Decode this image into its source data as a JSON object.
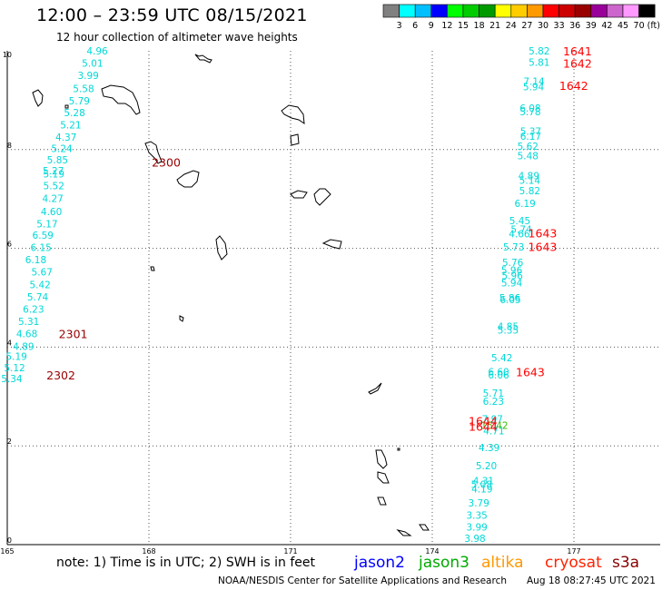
{
  "title": "12:00 – 23:59 UTC 08/15/2021",
  "subtitle": "12 hour collection of altimeter wave heights",
  "colorbar": {
    "ticks": [
      "3",
      "6",
      "9",
      "12",
      "15",
      "18",
      "21",
      "24",
      "27",
      "30",
      "33",
      "36",
      "39",
      "42",
      "45",
      "70"
    ],
    "unit": "(ft)",
    "colors": [
      "#808080",
      "#00ffff",
      "#00bfff",
      "#0000ff",
      "#00ff00",
      "#00cc00",
      "#009900",
      "#ffff00",
      "#ffcc00",
      "#ff9900",
      "#ff0000",
      "#cc0000",
      "#990000",
      "#990099",
      "#cc66cc",
      "#ff99ff",
      "#000000"
    ]
  },
  "axes": {
    "x_ticks": [
      "165",
      "168",
      "171",
      "174",
      "177"
    ],
    "y_ticks": [
      "10",
      "8",
      "6",
      "4",
      "2",
      "0"
    ]
  },
  "legend": {
    "note": "note: 1) Time is in UTC; 2) SWH is in feet",
    "satellites": [
      {
        "name": "jason2",
        "color": "#0000ff"
      },
      {
        "name": "jason3",
        "color": "#00aa00"
      },
      {
        "name": "altika",
        "color": "#ff9900"
      },
      {
        "name": "cryosat",
        "color": "#ff2200"
      },
      {
        "name": "s3a",
        "color": "#880000"
      }
    ]
  },
  "footer": {
    "credit": "NOAA/NESDIS Center for Satellite Applications and Research",
    "timestamp": "Aug 18 08:27:45 UTC 2021"
  },
  "colors": {
    "cyan": "#00d8d8",
    "red": "#ff0000",
    "darkred": "#990000",
    "green": "#33bb00"
  },
  "track_times": [
    {
      "label": "2300",
      "color": "darkred",
      "lon": 168.06,
      "lat": 7.75
    },
    {
      "label": "2301",
      "color": "darkred",
      "lon": 166.09,
      "lat": 4.27
    },
    {
      "label": "2302",
      "color": "darkred",
      "lon": 165.83,
      "lat": 3.44
    },
    {
      "label": "1641",
      "color": "red",
      "lon": 176.77,
      "lat": 10.0
    },
    {
      "label": "1642",
      "color": "red",
      "lon": 176.77,
      "lat": 9.75
    },
    {
      "label": "1642",
      "color": "red",
      "lon": 176.69,
      "lat": 9.3
    },
    {
      "label": "1643",
      "color": "red",
      "lon": 176.03,
      "lat": 6.31
    },
    {
      "label": "1643",
      "color": "red",
      "lon": 176.03,
      "lat": 6.04
    },
    {
      "label": "1643",
      "color": "red",
      "lon": 175.77,
      "lat": 3.5
    },
    {
      "label": "1644",
      "color": "red",
      "lon": 174.77,
      "lat": 2.51
    },
    {
      "label": "1644",
      "color": "red",
      "lon": 174.77,
      "lat": 2.4
    }
  ],
  "wave_heights": [
    {
      "v": "4.96",
      "c": "cyan",
      "lon": 166.68,
      "lat": 10.0
    },
    {
      "v": "5.01",
      "c": "cyan",
      "lon": 166.58,
      "lat": 9.75
    },
    {
      "v": "3.99",
      "c": "cyan",
      "lon": 166.49,
      "lat": 9.5
    },
    {
      "v": "5.58",
      "c": "cyan",
      "lon": 166.39,
      "lat": 9.24
    },
    {
      "v": "5.79",
      "c": "cyan",
      "lon": 166.3,
      "lat": 8.99
    },
    {
      "v": "5.28",
      "c": "cyan",
      "lon": 166.2,
      "lat": 8.75
    },
    {
      "v": "5.21",
      "c": "cyan",
      "lon": 166.12,
      "lat": 8.5
    },
    {
      "v": "4.37",
      "c": "cyan",
      "lon": 166.02,
      "lat": 8.25
    },
    {
      "v": "5.24",
      "c": "cyan",
      "lon": 165.93,
      "lat": 8.02
    },
    {
      "v": "5.85",
      "c": "cyan",
      "lon": 165.84,
      "lat": 7.79
    },
    {
      "v": "5.27",
      "c": "cyan",
      "lon": 165.75,
      "lat": 7.57
    },
    {
      "v": "5.19",
      "c": "cyan",
      "lon": 165.76,
      "lat": 7.51
    },
    {
      "v": "5.52",
      "c": "cyan",
      "lon": 165.76,
      "lat": 7.27
    },
    {
      "v": "4.27",
      "c": "cyan",
      "lon": 165.74,
      "lat": 7.01
    },
    {
      "v": "4.60",
      "c": "cyan",
      "lon": 165.71,
      "lat": 6.75
    },
    {
      "v": "5.17",
      "c": "cyan",
      "lon": 165.62,
      "lat": 6.5
    },
    {
      "v": "6.59",
      "c": "cyan",
      "lon": 165.53,
      "lat": 6.27
    },
    {
      "v": "6.15",
      "c": "cyan",
      "lon": 165.49,
      "lat": 6.02
    },
    {
      "v": "6.18",
      "c": "cyan",
      "lon": 165.38,
      "lat": 5.77
    },
    {
      "v": "5.67",
      "c": "cyan",
      "lon": 165.51,
      "lat": 5.52
    },
    {
      "v": "5.42",
      "c": "cyan",
      "lon": 165.47,
      "lat": 5.27
    },
    {
      "v": "5.74",
      "c": "cyan",
      "lon": 165.42,
      "lat": 5.02
    },
    {
      "v": "6.23",
      "c": "cyan",
      "lon": 165.33,
      "lat": 4.77
    },
    {
      "v": "5.31",
      "c": "cyan",
      "lon": 165.23,
      "lat": 4.52
    },
    {
      "v": "4.68",
      "c": "cyan",
      "lon": 165.19,
      "lat": 4.27
    },
    {
      "v": "4.89",
      "c": "cyan",
      "lon": 165.12,
      "lat": 4.02
    },
    {
      "v": "5.19",
      "c": "cyan",
      "lon": 164.97,
      "lat": 3.81
    },
    {
      "v": "5.12",
      "c": "cyan",
      "lon": 164.93,
      "lat": 3.58
    },
    {
      "v": "5.34",
      "c": "cyan",
      "lon": 164.87,
      "lat": 3.36
    },
    {
      "v": "5.82",
      "c": "cyan",
      "lon": 176.04,
      "lat": 10.0
    },
    {
      "v": "5.81",
      "c": "cyan",
      "lon": 176.04,
      "lat": 9.77
    },
    {
      "v": "7.14",
      "c": "cyan",
      "lon": 175.93,
      "lat": 9.38
    },
    {
      "v": "5.94",
      "c": "cyan",
      "lon": 175.92,
      "lat": 9.27
    },
    {
      "v": "6.08",
      "c": "cyan",
      "lon": 175.85,
      "lat": 8.84
    },
    {
      "v": "5.78",
      "c": "cyan",
      "lon": 175.85,
      "lat": 8.77
    },
    {
      "v": "5.37",
      "c": "cyan",
      "lon": 175.86,
      "lat": 8.37
    },
    {
      "v": "6.17",
      "c": "cyan",
      "lon": 175.86,
      "lat": 8.27
    },
    {
      "v": "5.62",
      "c": "cyan",
      "lon": 175.8,
      "lat": 8.07
    },
    {
      "v": "5.48",
      "c": "cyan",
      "lon": 175.8,
      "lat": 7.88
    },
    {
      "v": "4.89",
      "c": "cyan",
      "lon": 175.82,
      "lat": 7.47
    },
    {
      "v": "5.14",
      "c": "cyan",
      "lon": 175.84,
      "lat": 7.38
    },
    {
      "v": "5.82",
      "c": "cyan",
      "lon": 175.84,
      "lat": 7.17
    },
    {
      "v": "6.19",
      "c": "cyan",
      "lon": 175.74,
      "lat": 6.91
    },
    {
      "v": "5.45",
      "c": "cyan",
      "lon": 175.63,
      "lat": 6.56
    },
    {
      "v": "5.74",
      "c": "cyan",
      "lon": 175.66,
      "lat": 6.39
    },
    {
      "v": "4.66",
      "c": "cyan",
      "lon": 175.62,
      "lat": 6.3
    },
    {
      "v": "5.73",
      "c": "cyan",
      "lon": 175.5,
      "lat": 6.03
    },
    {
      "v": "5.76",
      "c": "cyan",
      "lon": 175.48,
      "lat": 5.72
    },
    {
      "v": "5.96",
      "c": "cyan",
      "lon": 175.46,
      "lat": 5.56
    },
    {
      "v": "5.96",
      "c": "cyan",
      "lon": 175.47,
      "lat": 5.45
    },
    {
      "v": "5.94",
      "c": "cyan",
      "lon": 175.46,
      "lat": 5.3
    },
    {
      "v": "5.86",
      "c": "cyan",
      "lon": 175.42,
      "lat": 5.0
    },
    {
      "v": "6.05",
      "c": "cyan",
      "lon": 175.43,
      "lat": 4.96
    },
    {
      "v": "4.85",
      "c": "cyan",
      "lon": 175.38,
      "lat": 4.42
    },
    {
      "v": "5.35",
      "c": "cyan",
      "lon": 175.38,
      "lat": 4.35
    },
    {
      "v": "5.42",
      "c": "cyan",
      "lon": 175.25,
      "lat": 3.79
    },
    {
      "v": "6.60",
      "c": "cyan",
      "lon": 175.18,
      "lat": 3.5
    },
    {
      "v": "6.06",
      "c": "cyan",
      "lon": 175.18,
      "lat": 3.44
    },
    {
      "v": "5.71",
      "c": "cyan",
      "lon": 175.07,
      "lat": 3.07
    },
    {
      "v": "6.23",
      "c": "cyan",
      "lon": 175.07,
      "lat": 2.9
    },
    {
      "v": "7.97",
      "c": "cyan",
      "lon": 175.05,
      "lat": 2.55
    },
    {
      "v": "15.42",
      "c": "green",
      "lon": 175.03,
      "lat": 2.42
    },
    {
      "v": "4.71",
      "c": "cyan",
      "lon": 175.08,
      "lat": 2.31
    },
    {
      "v": "4.39",
      "c": "cyan",
      "lon": 174.98,
      "lat": 1.97
    },
    {
      "v": "5.20",
      "c": "cyan",
      "lon": 174.92,
      "lat": 1.6
    },
    {
      "v": "4.31",
      "c": "cyan",
      "lon": 174.86,
      "lat": 1.3
    },
    {
      "v": "5.08",
      "c": "cyan",
      "lon": 174.82,
      "lat": 1.22
    },
    {
      "v": "4.19",
      "c": "cyan",
      "lon": 174.83,
      "lat": 1.13
    },
    {
      "v": "3.79",
      "c": "cyan",
      "lon": 174.76,
      "lat": 0.85
    },
    {
      "v": "3.35",
      "c": "cyan",
      "lon": 174.72,
      "lat": 0.6
    },
    {
      "v": "3.99",
      "c": "cyan",
      "lon": 174.72,
      "lat": 0.36
    },
    {
      "v": "3.98",
      "c": "cyan",
      "lon": 174.68,
      "lat": 0.13
    }
  ]
}
